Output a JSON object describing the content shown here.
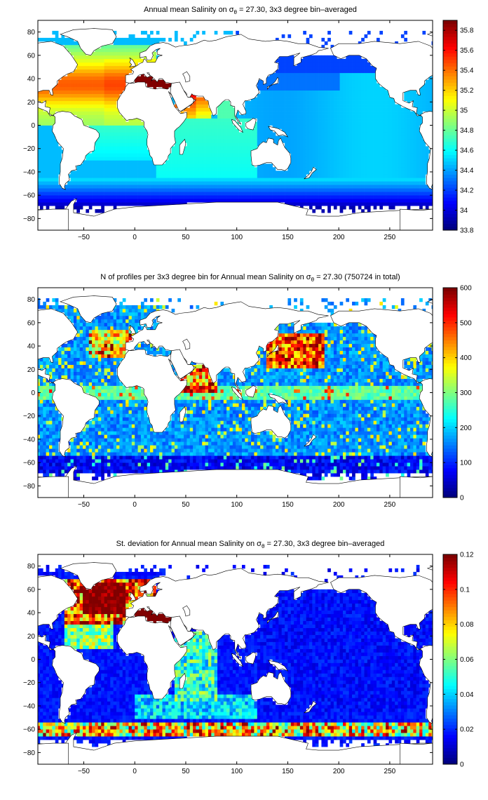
{
  "figure": {
    "panels": [
      {
        "title_main": "Annual mean Salinity on σ",
        "title_sub": "θ",
        "title_tail": " = 27.30, 3x3 degree bin–averaged"
      },
      {
        "title_main": "N of profiles per 3x3 degree bin for Annual mean Salinity on σ",
        "title_sub": "θ",
        "title_tail": " = 27.30 (750724 in total)"
      },
      {
        "title_main": "St. deviation for Annual mean Salinity on σ",
        "title_sub": "θ",
        "title_tail": " = 27.30, 3x3 degree bin–averaged"
      }
    ]
  },
  "chart_data": [
    {
      "type": "heatmap",
      "title": "Annual mean Salinity on σθ = 27.30, 3x3 degree bin–averaged",
      "xlabel": "",
      "ylabel": "",
      "xlim": [
        -95,
        292
      ],
      "ylim": [
        -90,
        90
      ],
      "xticks": [
        -50,
        0,
        50,
        100,
        150,
        200,
        250
      ],
      "yticks": [
        -80,
        -60,
        -40,
        -20,
        0,
        20,
        40,
        60,
        80
      ],
      "colorbar": {
        "min": 33.8,
        "max": 35.9,
        "ticks": [
          33.8,
          34,
          34.2,
          34.4,
          34.6,
          34.8,
          35,
          35.2,
          35.4,
          35.6,
          35.8
        ]
      },
      "colormap": "jet",
      "grid": false,
      "field": "salinity",
      "bin_deg": 3
    },
    {
      "type": "heatmap",
      "title": "N of profiles per 3x3 degree bin for Annual mean Salinity on σθ = 27.30 (750724 in total)",
      "xlabel": "",
      "ylabel": "",
      "xlim": [
        -95,
        292
      ],
      "ylim": [
        -90,
        90
      ],
      "xticks": [
        -50,
        0,
        50,
        100,
        150,
        200,
        250
      ],
      "yticks": [
        -80,
        -60,
        -40,
        -20,
        0,
        20,
        40,
        60,
        80
      ],
      "colorbar": {
        "min": 0,
        "max": 600,
        "ticks": [
          0,
          100,
          200,
          300,
          400,
          500,
          600
        ]
      },
      "colormap": "jet",
      "grid": false,
      "field": "count",
      "total": 750724,
      "bin_deg": 3
    },
    {
      "type": "heatmap",
      "title": "St. deviation for Annual mean Salinity on σθ = 27.30, 3x3 degree bin–averaged",
      "xlabel": "",
      "ylabel": "",
      "xlim": [
        -95,
        292
      ],
      "ylim": [
        -90,
        90
      ],
      "xticks": [
        -50,
        0,
        50,
        100,
        150,
        200,
        250
      ],
      "yticks": [
        -80,
        -60,
        -40,
        -20,
        0,
        20,
        40,
        60,
        80
      ],
      "colorbar": {
        "min": 0,
        "max": 0.12,
        "ticks": [
          0,
          0.02,
          0.04,
          0.06,
          0.08,
          0.1,
          0.12
        ]
      },
      "colormap": "jet",
      "grid": false,
      "field": "stdev",
      "bin_deg": 3
    }
  ]
}
